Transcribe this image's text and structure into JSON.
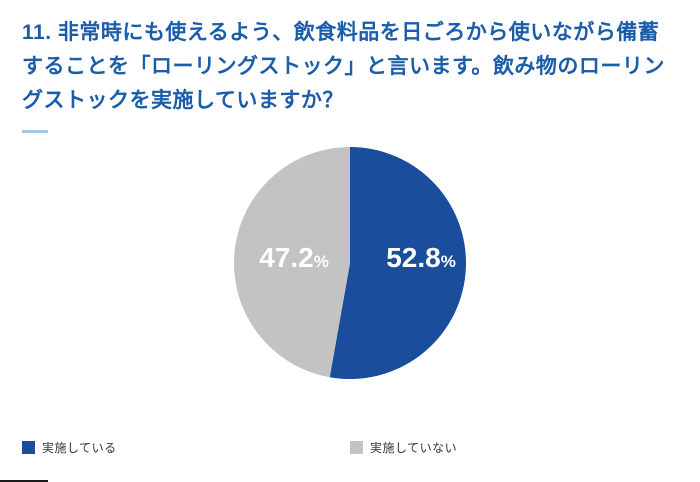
{
  "chart_data": {
    "type": "pie",
    "title": "11. 非常時にも使えるよう、飲食料品を日ごろから使いながら備蓄することを「ローリングストック」と言います。飲み物のローリングストックを実施していますか？",
    "labels": [
      "実施している",
      "実施していない"
    ],
    "values": [
      52.8,
      47.2
    ],
    "value_labels": [
      "52.8",
      "47.2"
    ],
    "percent_sign": "%",
    "colors": [
      "#1a4e9c",
      "#c3c3c3"
    ],
    "label_text_color": "#ffffff",
    "start_angle_deg": -90,
    "direction": "clockwise",
    "legend_position": "bottom"
  },
  "colors": {
    "title_text": "#1a5dab",
    "accent_dash": "#a8c6e4",
    "legend_text": "#333333",
    "background": "#ffffff"
  }
}
